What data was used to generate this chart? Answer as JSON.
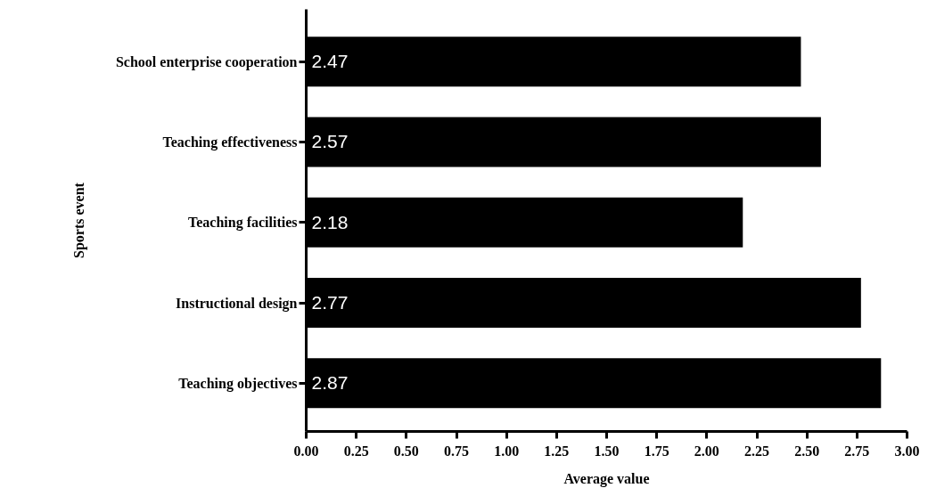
{
  "chart_data": {
    "type": "bar",
    "orientation": "horizontal",
    "xlabel": "Average value",
    "ylabel": "Sports event",
    "categories": [
      "School enterprise cooperation",
      "Teaching effectiveness",
      "Teaching facilities",
      "Instructional design",
      "Teaching objectives"
    ],
    "values": [
      2.47,
      2.57,
      2.18,
      2.77,
      2.87
    ],
    "color": "#000000",
    "data_labels": true,
    "grid": false,
    "xlim": [
      0,
      3
    ],
    "xticks": [
      {
        "value": 0,
        "label": "0.00"
      },
      {
        "value": 0.25,
        "label": "0.25"
      },
      {
        "value": 0.5,
        "label": "0.50"
      },
      {
        "value": 0.75,
        "label": "0.75"
      },
      {
        "value": 1,
        "label": "1.00"
      },
      {
        "value": 1.25,
        "label": "1.25"
      },
      {
        "value": 1.5,
        "label": "1.50"
      },
      {
        "value": 1.75,
        "label": "1.75"
      },
      {
        "value": 2,
        "label": "2.00"
      },
      {
        "value": 2.25,
        "label": "2.25"
      },
      {
        "value": 2.5,
        "label": "2.50"
      },
      {
        "value": 2.75,
        "label": "2.75"
      },
      {
        "value": 3,
        "label": "3.00"
      }
    ]
  }
}
